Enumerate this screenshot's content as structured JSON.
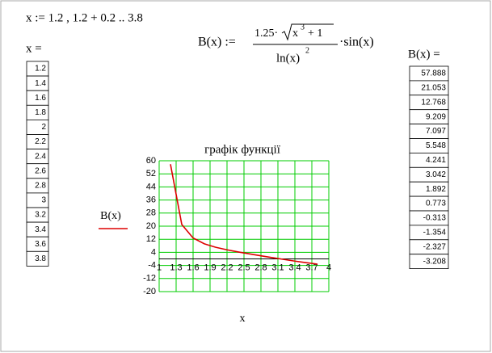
{
  "definition": "x := 1.2 , 1.2 + 0.2 .. 3.8",
  "x_table": {
    "label": "x ="
  },
  "b_table": {
    "label": "B(x) ="
  },
  "formula": {
    "lhs": "B(x) :=",
    "coef": "1.25·",
    "base": "x",
    "exp": "3",
    "rest": "+ 1",
    "den": "ln(x)",
    "den_exp": "2",
    "tail": "·sin(x)"
  },
  "chart_data": {
    "type": "line",
    "title": "графік функції",
    "x_label": "x",
    "x": [
      1.2,
      1.4,
      1.6,
      1.8,
      2,
      2.2,
      2.4,
      2.6,
      2.8,
      3,
      3.2,
      3.4,
      3.6,
      3.8
    ],
    "series": [
      {
        "name": "B(x)",
        "color": "#dd0000",
        "values": [
          57.888,
          21.053,
          12.768,
          9.209,
          7.097,
          5.548,
          4.241,
          3.042,
          1.892,
          0.773,
          -0.313,
          -1.354,
          -2.327,
          -3.208
        ]
      }
    ],
    "xlim": [
      1,
      4
    ],
    "xticks": [
      1,
      1.3,
      1.6,
      1.9,
      2.2,
      2.5,
      2.8,
      3.1,
      3.4,
      3.7,
      4
    ],
    "ylim": [
      -20,
      60
    ],
    "yticks": [
      60,
      52,
      44,
      36,
      28,
      20,
      12,
      4,
      -4,
      -12,
      -20
    ],
    "grid": true,
    "grid_color": "#00cc00"
  }
}
